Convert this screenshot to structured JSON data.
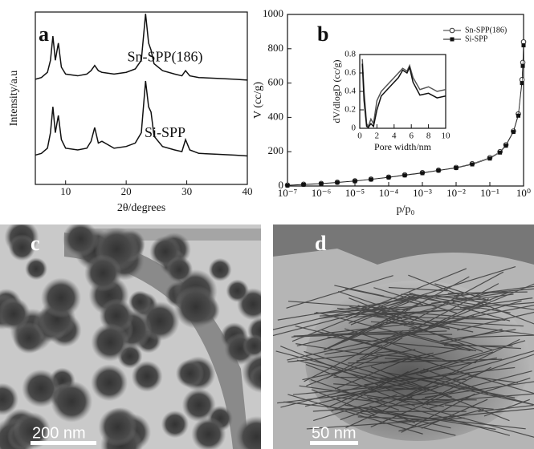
{
  "chart_data": [
    {
      "type": "line",
      "panel_label": "a",
      "xlabel": "2θ/degrees",
      "ylabel": "Intensity/a.u",
      "xlim": [
        5,
        40
      ],
      "xticks": [
        10,
        20,
        30,
        40
      ],
      "ylim": [
        0,
        10
      ],
      "label_series_on_curve": true,
      "series": [
        {
          "name": "Sn-SPP(186)",
          "color": "#111111",
          "x": [
            5,
            6,
            7,
            7.5,
            7.9,
            8.3,
            8.8,
            9.3,
            10,
            12,
            13.5,
            14.2,
            14.8,
            15.4,
            16,
            18,
            20,
            21.5,
            22.5,
            23.2,
            23.7,
            24.1,
            24.6,
            26,
            28,
            29.2,
            29.8,
            30.5,
            32,
            35,
            38,
            40
          ],
          "values": [
            6.1,
            6.2,
            6.5,
            7.2,
            8.6,
            7.2,
            8.2,
            6.8,
            6.4,
            6.3,
            6.4,
            6.6,
            6.9,
            6.6,
            6.5,
            6.4,
            6.5,
            6.7,
            7.2,
            9.9,
            8.2,
            7.8,
            7.0,
            6.6,
            6.4,
            6.3,
            6.6,
            6.3,
            6.2,
            6.15,
            6.1,
            6.05
          ]
        },
        {
          "name": "Si-SPP",
          "color": "#111111",
          "x": [
            5,
            6,
            7,
            7.5,
            7.9,
            8.3,
            8.8,
            9.3,
            10,
            12,
            13.5,
            14.2,
            14.8,
            15.4,
            16,
            18,
            20,
            21.5,
            22.5,
            23.2,
            23.7,
            24.1,
            24.6,
            26,
            28,
            29.2,
            29.8,
            30.5,
            32,
            35,
            38,
            40
          ],
          "values": [
            1.7,
            1.8,
            2.1,
            3.0,
            4.5,
            3.0,
            4.0,
            2.6,
            2.1,
            2.0,
            2.1,
            2.5,
            3.3,
            2.4,
            2.5,
            2.1,
            2.2,
            2.4,
            3.0,
            6.0,
            4.5,
            4.2,
            2.8,
            2.2,
            2.0,
            1.9,
            2.6,
            2.0,
            1.8,
            1.75,
            1.7,
            1.65
          ]
        }
      ]
    },
    {
      "type": "scatter",
      "panel_label": "b",
      "xlabel": "p/p₀",
      "ylabel": "V (cc/g)",
      "log_x": true,
      "xlim": [
        1e-07,
        1
      ],
      "xticks": [
        {
          "value": 1e-07,
          "label": "10⁻⁷"
        },
        {
          "value": 1e-06,
          "label": "10⁻⁶"
        },
        {
          "value": 1e-05,
          "label": "10⁻⁵"
        },
        {
          "value": 0.0001,
          "label": "10⁻⁴"
        },
        {
          "value": 0.001,
          "label": "10⁻³"
        },
        {
          "value": 0.01,
          "label": "10⁻²"
        },
        {
          "value": 0.1,
          "label": "10⁻¹"
        },
        {
          "value": 1,
          "label": "10⁰"
        }
      ],
      "ylim": [
        0,
        1000
      ],
      "yticks": [
        0,
        200,
        400,
        600,
        800,
        1000
      ],
      "legend": "top-right",
      "series": [
        {
          "name": "Sn-SPP(186)",
          "color": "#333333",
          "marker": "circle-open",
          "x": [
            1e-07,
            3e-07,
            1e-06,
            3e-06,
            1e-05,
            3e-05,
            0.0001,
            0.0003,
            0.001,
            0.003,
            0.01,
            0.03,
            0.1,
            0.2,
            0.3,
            0.5,
            0.7,
            0.9,
            0.95,
            1
          ],
          "values": [
            5,
            10,
            15,
            22,
            30,
            40,
            52,
            65,
            78,
            92,
            108,
            130,
            165,
            200,
            240,
            320,
            420,
            620,
            720,
            840
          ]
        },
        {
          "name": "Si-SPP",
          "color": "#111111",
          "marker": "square",
          "x": [
            1e-07,
            3e-07,
            1e-06,
            3e-06,
            1e-05,
            3e-05,
            0.0001,
            0.0003,
            0.001,
            0.003,
            0.01,
            0.03,
            0.1,
            0.2,
            0.3,
            0.5,
            0.7,
            0.9,
            0.95,
            1
          ],
          "values": [
            3,
            8,
            13,
            20,
            28,
            38,
            50,
            62,
            75,
            90,
            105,
            126,
            160,
            195,
            235,
            315,
            410,
            600,
            700,
            820
          ]
        }
      ]
    },
    {
      "type": "line",
      "xlabel": "Pore width/nm",
      "ylabel": "dV/dlogD (cc/g)",
      "xlim": [
        0,
        10
      ],
      "xticks": [
        0,
        2,
        4,
        6,
        8,
        10
      ],
      "ylim": [
        0,
        0.8
      ],
      "yticks": [
        0,
        0.2,
        0.4,
        0.6,
        0.8
      ],
      "series": [
        {
          "name": "Sn-SPP(186)",
          "color": "#555555",
          "x": [
            0.3,
            0.5,
            0.8,
            1,
            1.3,
            1.6,
            2,
            2.5,
            3,
            3.5,
            4,
            4.5,
            5,
            5.5,
            5.8,
            6.2,
            7,
            8,
            9,
            10
          ],
          "values": [
            0.75,
            0.4,
            0.05,
            0.02,
            0.1,
            0.05,
            0.3,
            0.4,
            0.45,
            0.5,
            0.55,
            0.6,
            0.65,
            0.62,
            0.68,
            0.55,
            0.42,
            0.45,
            0.4,
            0.42
          ]
        },
        {
          "name": "Si-SPP",
          "color": "#111111",
          "x": [
            0.3,
            0.5,
            0.8,
            1,
            1.3,
            1.6,
            2,
            2.5,
            3,
            3.5,
            4,
            4.5,
            5,
            5.5,
            5.8,
            6.2,
            7,
            8,
            9,
            10
          ],
          "values": [
            0.7,
            0.3,
            0.02,
            0.01,
            0.05,
            0.02,
            0.2,
            0.35,
            0.4,
            0.45,
            0.5,
            0.55,
            0.63,
            0.6,
            0.66,
            0.5,
            0.36,
            0.38,
            0.33,
            0.35
          ]
        }
      ]
    }
  ],
  "images": [
    {
      "label": "c",
      "scale_bar": "200 nm"
    },
    {
      "label": "d",
      "scale_bar": "50 nm"
    }
  ]
}
